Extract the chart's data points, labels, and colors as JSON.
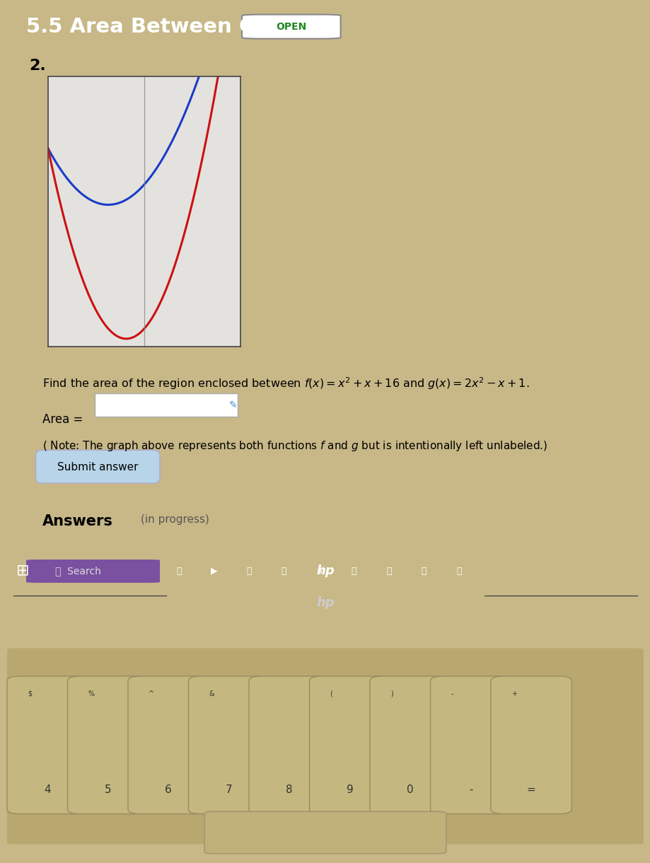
{
  "title": "5.5 Area Between Curves",
  "open_badge": "OPEN",
  "problem_number": "2.",
  "find_text_1": "Find the area of the region enclosed between $f(x) = x^2 + x + 16$ and $g(x) = 2x^2 - x + 1$.",
  "area_label": "Area =",
  "note_text": "( Note: The graph above represents both functions $f$ and $g$ but is intentionally left unlabeled.)",
  "submit_label": "Submit answer",
  "answers_label": "Answers",
  "in_progress": "(in progress)",
  "header_bg": "#1e2060",
  "screen_bg": "#dcdad6",
  "content_bg": "#e8e6e2",
  "plot_bg": "#e4e2de",
  "f_color": "#1a3cc8",
  "g_color": "#cc1111",
  "taskbar_bg": "#5a3580",
  "bezel_bg": "#111111",
  "laptop_body_bg": "#c8b888",
  "keyboard_bg": "#b8a870",
  "key_bg": "#c4b880",
  "x_min": -3,
  "x_max": 5,
  "y_min": 0,
  "y_max": 30,
  "vline_x": 1
}
